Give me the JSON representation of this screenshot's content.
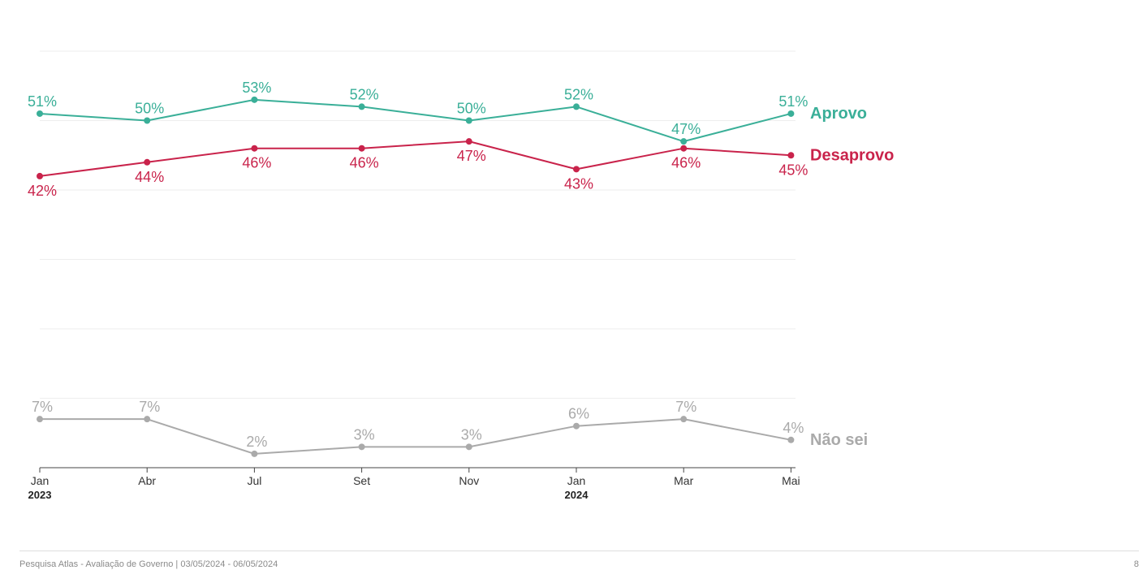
{
  "chart_data": {
    "type": "line",
    "categories": [
      "Jan",
      "Abr",
      "Jul",
      "Set",
      "Nov",
      "Jan",
      "Mar",
      "Mai"
    ],
    "year_labels": [
      {
        "index": 0,
        "label": "2023"
      },
      {
        "index": 5,
        "label": "2024"
      }
    ],
    "ylim": [
      0,
      60
    ],
    "grid": true,
    "value_suffix": "%",
    "series": [
      {
        "name": "Aprovo",
        "color": "#3aaf98",
        "values": [
          51,
          50,
          53,
          52,
          50,
          52,
          47,
          51
        ],
        "label_position": "above"
      },
      {
        "name": "Desaprovo",
        "color": "#c9234b",
        "values": [
          42,
          44,
          46,
          46,
          47,
          43,
          46,
          45
        ],
        "label_position": "below"
      },
      {
        "name": "Não sei",
        "color": "#aaaaaa",
        "values": [
          7,
          7,
          2,
          3,
          3,
          6,
          7,
          4
        ],
        "label_position": "above"
      }
    ]
  },
  "footer": {
    "source": "Pesquisa Atlas - Avaliação de Governo | 03/05/2024 - 06/05/2024",
    "page_number": "8"
  }
}
